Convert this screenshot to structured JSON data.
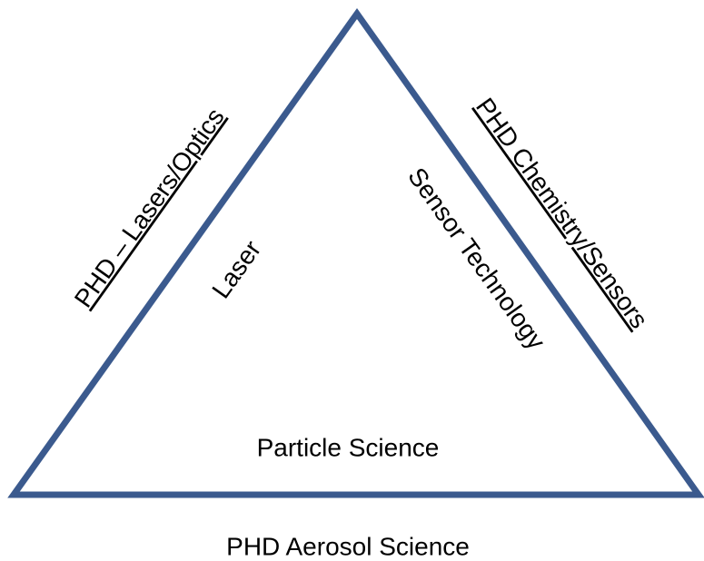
{
  "left_outer": "PHD – Lasers/Optics",
  "left_inner": "Laser",
  "right_inner": "Sensor Technology",
  "right_outer": "PHD Chemistry/Sensors",
  "bottom_inner": "Particle Science",
  "bottom_outer": "PHD Aerosol Science"
}
